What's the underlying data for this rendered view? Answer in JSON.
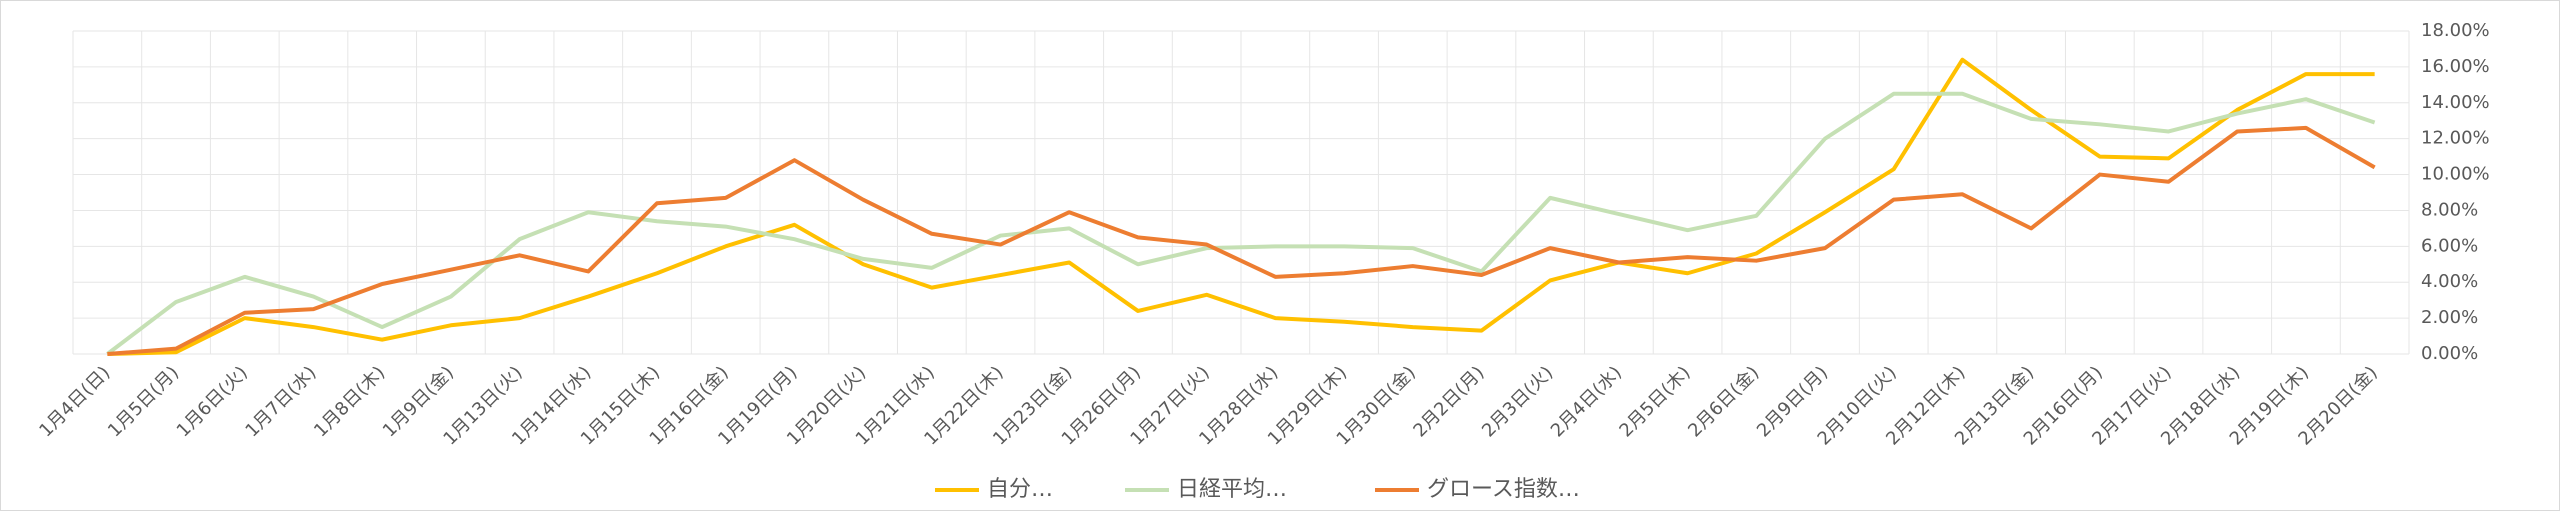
{
  "chart_data": {
    "type": "line",
    "categories": [
      "1月4日(日)",
      "1月5日(月)",
      "1月6日(火)",
      "1月7日(水)",
      "1月8日(木)",
      "1月9日(金)",
      "1月13日(火)",
      "1月14日(水)",
      "1月15日(木)",
      "1月16日(金)",
      "1月19日(月)",
      "1月20日(火)",
      "1月21日(水)",
      "1月22日(木)",
      "1月23日(金)",
      "1月26日(月)",
      "1月27日(火)",
      "1月28日(水)",
      "1月29日(木)",
      "1月30日(金)",
      "2月2日(月)",
      "2月3日(火)",
      "2月4日(水)",
      "2月5日(木)",
      "2月6日(金)",
      "2月9日(月)",
      "2月10日(火)",
      "2月12日(木)",
      "2月13日(金)",
      "2月16日(月)",
      "2月17日(火)",
      "2月18日(水)",
      "2月19日(木)",
      "2月20日(金)"
    ],
    "series": [
      {
        "name": "自分…",
        "color": "#ffc000",
        "values": [
          0,
          0.1,
          2.0,
          1.5,
          0.8,
          1.6,
          2.0,
          3.2,
          4.5,
          6.0,
          7.2,
          5.0,
          3.7,
          4.4,
          5.1,
          2.4,
          3.3,
          2.0,
          1.8,
          1.5,
          1.3,
          4.1,
          5.1,
          4.5,
          5.6,
          7.9,
          10.3,
          16.4,
          13.6,
          11.0,
          10.9,
          13.6,
          15.6,
          15.6
        ]
      },
      {
        "name": "日経平均…",
        "color": "#c5e0b4",
        "values": [
          0,
          2.9,
          4.3,
          3.2,
          1.5,
          3.2,
          6.4,
          7.9,
          7.4,
          7.1,
          6.4,
          5.3,
          4.8,
          6.6,
          7.0,
          5.0,
          5.9,
          6.0,
          6.0,
          5.9,
          4.6,
          8.7,
          7.8,
          6.9,
          7.7,
          12.0,
          14.5,
          14.5,
          13.1,
          12.8,
          12.4,
          13.4,
          14.2,
          12.9
        ]
      },
      {
        "name": "グロース指数…",
        "color": "#ed7d31",
        "values": [
          0,
          0.3,
          2.3,
          2.5,
          3.9,
          4.7,
          5.5,
          4.6,
          8.4,
          8.7,
          10.8,
          8.6,
          6.7,
          6.1,
          7.9,
          6.5,
          6.1,
          4.3,
          4.5,
          4.9,
          4.4,
          5.9,
          5.1,
          5.4,
          5.2,
          5.9,
          8.6,
          8.9,
          7.0,
          10.0,
          9.6,
          12.4,
          12.6,
          10.4
        ]
      }
    ],
    "ylim": [
      0,
      18
    ],
    "yticks": [
      {
        "value": 0,
        "label": "0.00%"
      },
      {
        "value": 2,
        "label": "2.00%"
      },
      {
        "value": 4,
        "label": "4.00%"
      },
      {
        "value": 6,
        "label": "6.00%"
      },
      {
        "value": 8,
        "label": "8.00%"
      },
      {
        "value": 10,
        "label": "10.00%"
      },
      {
        "value": 12,
        "label": "12.00%"
      },
      {
        "value": 14,
        "label": "14.00%"
      },
      {
        "value": 16,
        "label": "16.00%"
      },
      {
        "value": 18,
        "label": "18.00%"
      }
    ],
    "grid": true,
    "legend": "bottom"
  }
}
